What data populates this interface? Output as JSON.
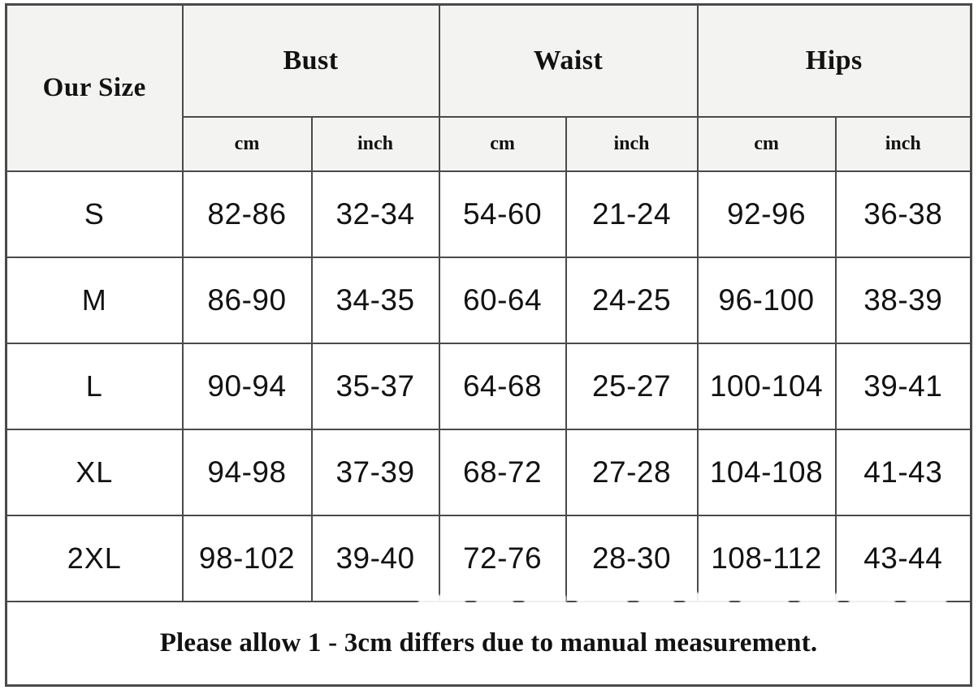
{
  "chart_data": {
    "type": "table",
    "corner_header": "Our Size",
    "column_groups": [
      "Bust",
      "Waist",
      "Hips"
    ],
    "unit_headers": [
      "cm",
      "inch",
      "cm",
      "inch",
      "cm",
      "inch"
    ],
    "rows": [
      {
        "size": "S",
        "values": [
          "82-86",
          "32-34",
          "54-60",
          "21-24",
          "92-96",
          "36-38"
        ]
      },
      {
        "size": "M",
        "values": [
          "86-90",
          "34-35",
          "60-64",
          "24-25",
          "96-100",
          "38-39"
        ]
      },
      {
        "size": "L",
        "values": [
          "90-94",
          "35-37",
          "64-68",
          "25-27",
          "100-104",
          "39-41"
        ]
      },
      {
        "size": "XL",
        "values": [
          "94-98",
          "37-39",
          "68-72",
          "27-28",
          "104-108",
          "41-43"
        ]
      },
      {
        "size": "2XL",
        "values": [
          "98-102",
          "39-40",
          "72-76",
          "28-30",
          "108-112",
          "43-44"
        ]
      }
    ],
    "footer_note": "Please allow 1 - 3cm differs due to manual measurement."
  },
  "colors": {
    "grid_border": "#4a4a4a",
    "header_background": "#f3f3f2",
    "body_background": "#ffffff",
    "text": "#121212",
    "watermark": "#ffffff"
  }
}
